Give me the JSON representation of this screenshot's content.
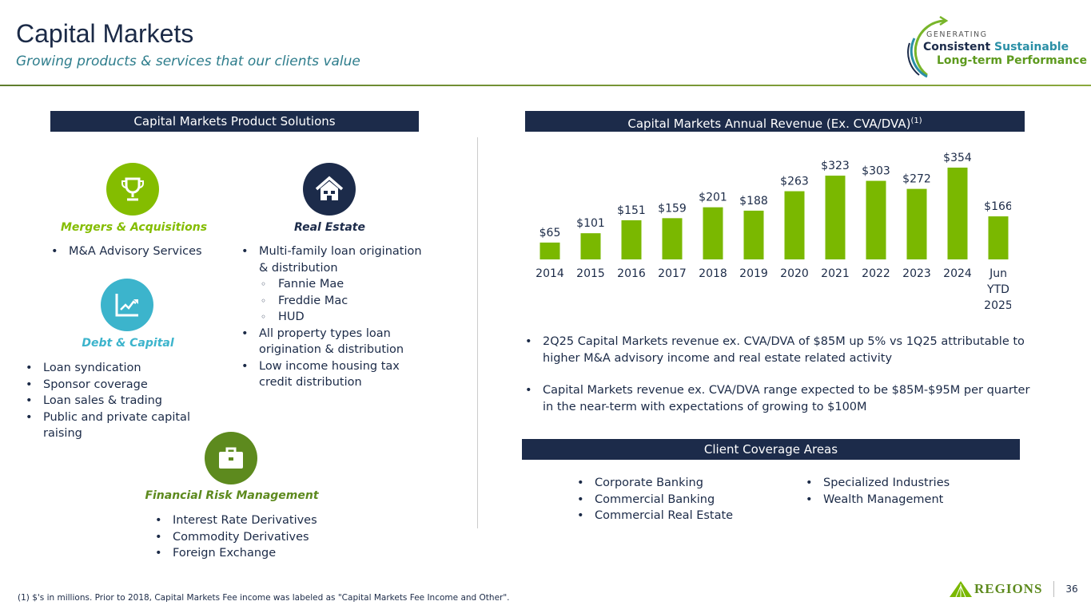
{
  "header": {
    "title": "Capital Markets",
    "subtitle": "Growing products & services that our clients value"
  },
  "tagline": {
    "line1": "GENERATING",
    "word1": "Consistent",
    "word2": "Sustainable",
    "line3": "Long-term Performance"
  },
  "left": {
    "header": "Capital Markets Product Solutions",
    "sections": [
      {
        "title": "Mergers & Acquisitions",
        "icon": "trophy-icon",
        "color": "#84bd00",
        "items": [
          "M&A Advisory Services"
        ]
      },
      {
        "title": "Real Estate",
        "icon": "house-icon",
        "color": "#1c2b4a",
        "items": [
          "Multi-family loan origination & distribution",
          "Fannie Mae",
          "Freddie Mac",
          "HUD",
          "All property types loan origination & distribution",
          "Low income housing tax credit distribution"
        ]
      },
      {
        "title": "Debt & Capital",
        "icon": "growth-chart-icon",
        "color": "#3cb4cc",
        "items": [
          "Loan syndication",
          "Sponsor coverage",
          "Loan sales & trading",
          "Public and private capital raising"
        ]
      },
      {
        "title": "Financial Risk Management",
        "icon": "briefcase-icon",
        "color": "#5d8a1e",
        "items": [
          "Interest Rate Derivatives",
          "Commodity Derivatives",
          "Foreign Exchange"
        ]
      }
    ]
  },
  "chart_data": {
    "type": "bar",
    "title": "Capital Markets Annual Revenue (Ex. CVA/DVA)",
    "title_sup": "(1)",
    "categories": [
      "2014",
      "2015",
      "2016",
      "2017",
      "2018",
      "2019",
      "2020",
      "2021",
      "2022",
      "2023",
      "2024",
      "Jun YTD 2025"
    ],
    "values": [
      65,
      101,
      151,
      159,
      201,
      188,
      263,
      323,
      303,
      272,
      354,
      166
    ],
    "labels": [
      "$65",
      "$101",
      "$151",
      "$159",
      "$201",
      "$188",
      "$263",
      "$323",
      "$303",
      "$272",
      "$354",
      "$166"
    ],
    "ylim": [
      0,
      354
    ],
    "unit": "$M",
    "bar_color": "#7ab800"
  },
  "notes": [
    "2Q25 Capital Markets revenue ex. CVA/DVA of $85M up 5% vs 1Q25 attributable to higher M&A advisory income and real estate related activity",
    "Capital Markets revenue ex. CVA/DVA range expected to be $85M-$95M per quarter in the near-term with expectations of growing to $100M"
  ],
  "coverage": {
    "header": "Client Coverage Areas",
    "col1": [
      "Corporate Banking",
      "Commercial Banking",
      "Commercial Real Estate"
    ],
    "col2": [
      "Specialized Industries",
      "Wealth Management"
    ]
  },
  "footer": {
    "footnote": "(1) $'s in millions.  Prior to 2018, Capital Markets Fee income was labeled as \"Capital Markets Fee Income and Other\".",
    "logo": "REGIONS",
    "page": "36"
  }
}
